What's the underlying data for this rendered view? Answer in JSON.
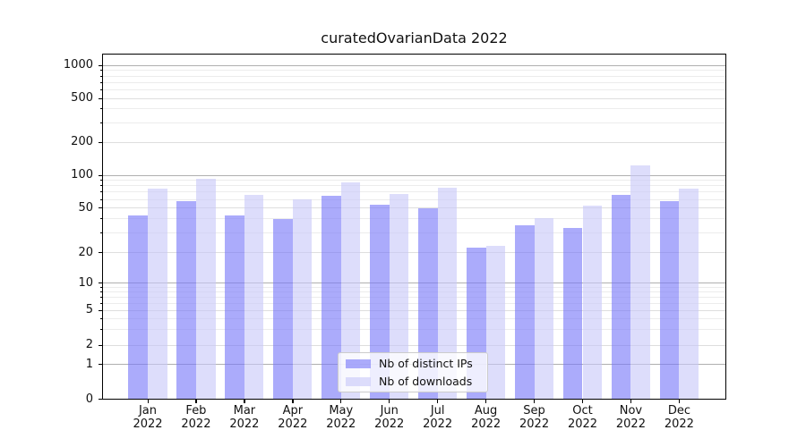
{
  "title": "curatedOvarianData 2022",
  "legend": {
    "items": [
      {
        "label": "Nb of distinct IPs"
      },
      {
        "label": "Nb of downloads"
      }
    ]
  },
  "chart_data": {
    "type": "bar",
    "title": "curatedOvarianData 2022",
    "categories": [
      "Jan 2022",
      "Feb 2022",
      "Mar 2022",
      "Apr 2022",
      "May 2022",
      "Jun 2022",
      "Jul 2022",
      "Aug 2022",
      "Sep 2022",
      "Oct 2022",
      "Nov 2022",
      "Dec 2022"
    ],
    "x_tick_month": [
      "Jan",
      "Feb",
      "Mar",
      "Apr",
      "May",
      "Jun",
      "Jul",
      "Aug",
      "Sep",
      "Oct",
      "Nov",
      "Dec"
    ],
    "x_tick_year": "2022",
    "series": [
      {
        "name": "Nb of distinct IPs",
        "color": "#7878f8",
        "alpha": 0.62,
        "values": [
          43,
          58,
          43,
          40,
          65,
          54,
          50,
          22,
          35,
          33,
          66,
          58
        ]
      },
      {
        "name": "Nb of downloads",
        "color": "#c8c8f8",
        "alpha": 0.62,
        "values": [
          75,
          93,
          66,
          60,
          86,
          67,
          77,
          23,
          41,
          53,
          123,
          76
        ]
      }
    ],
    "yscale": "symlog",
    "ytick_labels": [
      0,
      1,
      2,
      5,
      10,
      20,
      50,
      100,
      200,
      500,
      1000
    ],
    "ylim": [
      0,
      1000
    ],
    "grid": true,
    "legend_position": "lower center"
  },
  "colors": {
    "major_grid": "#b0b0b0",
    "labeled_minor_grid": "#dedede",
    "minor_grid": "#ececec",
    "spine": "#000000",
    "text": "#111111",
    "legend_border": "#cccccc"
  }
}
